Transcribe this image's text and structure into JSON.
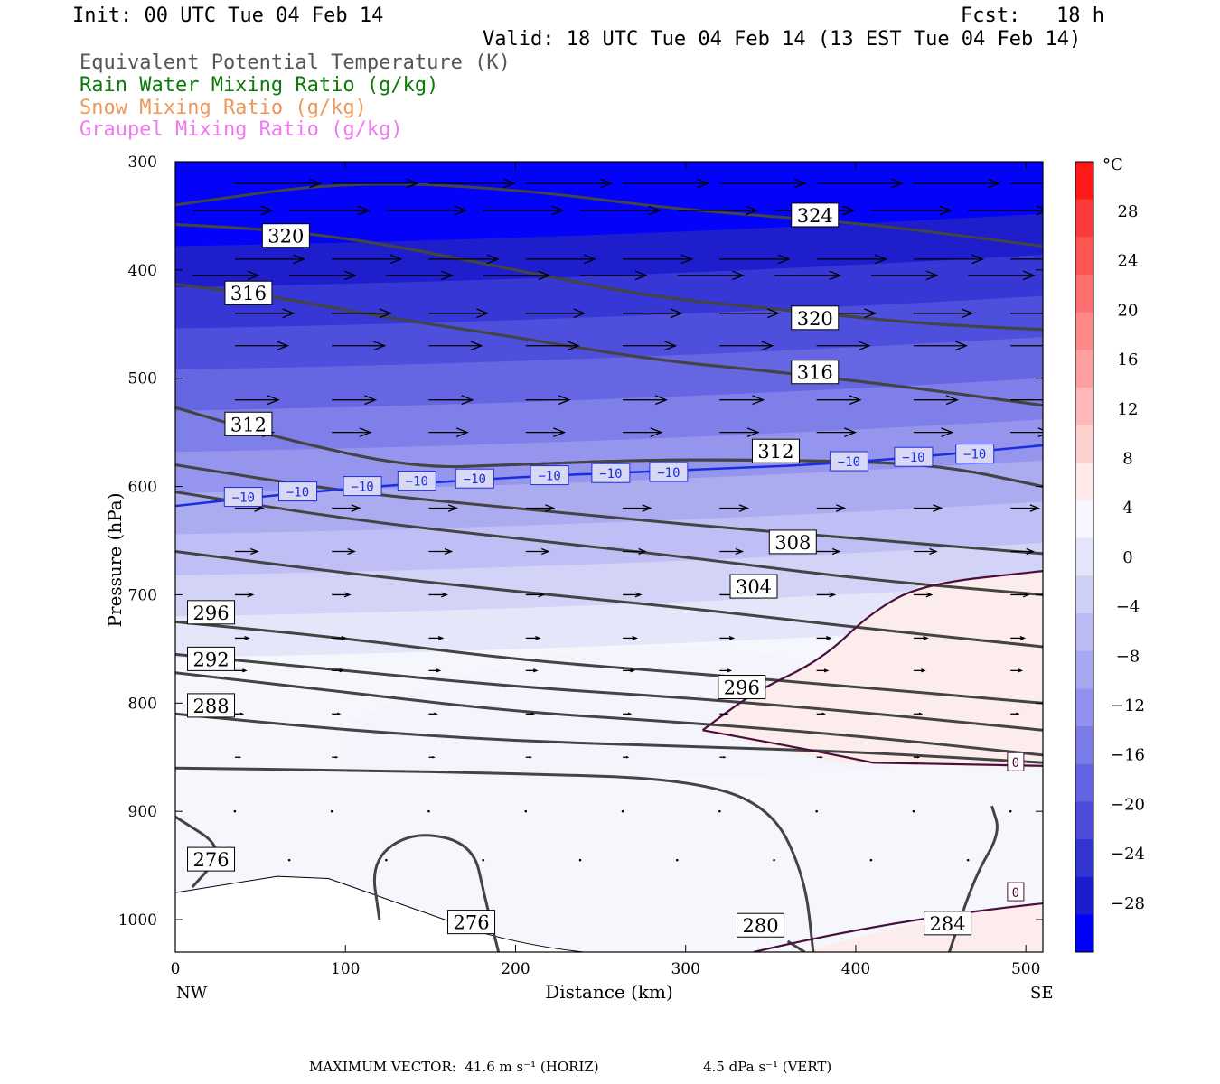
{
  "header": {
    "init": "Init: 00 UTC Tue 04 Feb 14",
    "fcst": "Fcst:   18 h",
    "valid": "Valid: 18 UTC Tue 04 Feb 14 (13 EST Tue 04 Feb 14)"
  },
  "legend": [
    {
      "label": "Equivalent Potential Temperature (K)",
      "color": "#555555"
    },
    {
      "label": "Rain Water Mixing Ratio (g/kg)",
      "color": "#0a7a0a"
    },
    {
      "label": "Snow Mixing Ratio (g/kg)",
      "color": "#f0985a"
    },
    {
      "label": "Graupel Mixing Ratio (g/kg)",
      "color": "#ef7aef"
    }
  ],
  "footer": {
    "max_vector": "MAXIMUM VECTOR:  41.6 m s⁻¹ (HORIZ)",
    "vert": "4.5 dPa s⁻¹ (VERT)"
  },
  "chart_data": {
    "type": "cross-section",
    "xlabel": "Distance (km)",
    "ylabel": "Pressure (hPa)",
    "x_ticks": [
      0,
      100,
      200,
      300,
      400,
      500
    ],
    "x_range": [
      0,
      510
    ],
    "y_ticks": [
      300,
      400,
      500,
      600,
      700,
      800,
      900,
      1000
    ],
    "y_range": [
      300,
      1030
    ],
    "endpoint_left": "NW",
    "endpoint_right": "SE",
    "colorbar_unit": "°C",
    "colorbar_labels": [
      "28",
      "24",
      "20",
      "16",
      "12",
      "8",
      "4",
      "0",
      "−4",
      "−8",
      "−12",
      "−16",
      "−20",
      "−24",
      "−28"
    ],
    "colorbar_colors": [
      "#ff1a1a",
      "#ff3a3a",
      "#ff5555",
      "#ff6f6f",
      "#ff8888",
      "#ffa0a0",
      "#ffb8b8",
      "#ffd0d0",
      "#ffeaea",
      "#f6f6fd",
      "#e4e4fa",
      "#d0d0f7",
      "#bcbcf4",
      "#a8a8f0",
      "#9292ec",
      "#7c7ce8",
      "#6464e2",
      "#4c4cdb",
      "#3434d4",
      "#1c1ccc",
      "#0000ff"
    ],
    "theta_e": [
      {
        "label": "324",
        "label_at": [
          376,
          350
        ],
        "points": [
          [
            0,
            340
          ],
          [
            100,
            318
          ],
          [
            200,
            325
          ],
          [
            300,
            345
          ],
          [
            400,
            356
          ],
          [
            510,
            378
          ]
        ]
      },
      {
        "label": "320",
        "label_at": [
          65,
          369
        ],
        "points": [
          [
            0,
            358
          ],
          [
            60,
            363
          ],
          [
            120,
            375
          ],
          [
            200,
            400
          ],
          [
            280,
            425
          ],
          [
            360,
            437
          ],
          [
            440,
            450
          ],
          [
            510,
            455
          ]
        ]
      },
      {
        "label": "320",
        "label_at": [
          376,
          445
        ],
        "points": [
          [
            0,
            358
          ],
          [
            60,
            363
          ],
          [
            120,
            375
          ],
          [
            200,
            400
          ],
          [
            280,
            425
          ],
          [
            360,
            437
          ],
          [
            440,
            450
          ],
          [
            510,
            455
          ]
        ]
      },
      {
        "label": "316",
        "label_at": [
          43,
          422
        ],
        "points": [
          [
            0,
            413
          ],
          [
            60,
            425
          ],
          [
            120,
            443
          ],
          [
            200,
            462
          ],
          [
            280,
            483
          ],
          [
            360,
            495
          ],
          [
            440,
            510
          ],
          [
            510,
            525
          ]
        ]
      },
      {
        "label": "316",
        "label_at": [
          376,
          495
        ],
        "points": [
          [
            0,
            413
          ],
          [
            60,
            425
          ],
          [
            120,
            443
          ],
          [
            200,
            462
          ],
          [
            280,
            483
          ],
          [
            360,
            495
          ],
          [
            440,
            510
          ],
          [
            510,
            525
          ]
        ]
      },
      {
        "label": "312",
        "label_at": [
          43,
          543
        ],
        "points": [
          [
            0,
            527
          ],
          [
            60,
            555
          ],
          [
            140,
            583
          ],
          [
            200,
            580
          ],
          [
            280,
            575
          ],
          [
            380,
            576
          ],
          [
            450,
            580
          ],
          [
            510,
            600
          ]
        ]
      },
      {
        "label": "312",
        "label_at": [
          353,
          568
        ],
        "points": [
          [
            0,
            527
          ],
          [
            60,
            555
          ],
          [
            140,
            583
          ],
          [
            200,
            580
          ],
          [
            280,
            575
          ],
          [
            380,
            576
          ],
          [
            450,
            580
          ],
          [
            510,
            600
          ]
        ]
      },
      {
        "label": "308",
        "label_at": [
          363,
          652
        ],
        "points": [
          [
            0,
            580
          ],
          [
            100,
            605
          ],
          [
            200,
            620
          ],
          [
            300,
            635
          ],
          [
            400,
            648
          ],
          [
            510,
            662
          ]
        ]
      },
      {
        "label": "304",
        "label_at": [
          340,
          693
        ],
        "points": [
          [
            0,
            605
          ],
          [
            100,
            630
          ],
          [
            200,
            648
          ],
          [
            300,
            665
          ],
          [
            400,
            685
          ],
          [
            510,
            700
          ]
        ]
      },
      {
        "label": "296",
        "label_at": [
          21,
          717
        ],
        "points": [
          [
            0,
            660
          ],
          [
            100,
            680
          ],
          [
            200,
            697
          ],
          [
            300,
            712
          ],
          [
            400,
            730
          ],
          [
            510,
            748
          ]
        ]
      },
      {
        "label": "292",
        "label_at": [
          21,
          760
        ],
        "points": [
          [
            0,
            725
          ],
          [
            100,
            740
          ],
          [
            200,
            760
          ],
          [
            300,
            772
          ],
          [
            400,
            785
          ],
          [
            510,
            800
          ]
        ]
      },
      {
        "label": "296",
        "label_at": [
          333,
          786
        ],
        "points": [
          [
            0,
            755
          ],
          [
            100,
            770
          ],
          [
            200,
            785
          ],
          [
            300,
            795
          ],
          [
            400,
            808
          ],
          [
            510,
            825
          ]
        ]
      },
      {
        "label": "288",
        "label_at": [
          21,
          803
        ],
        "points": [
          [
            0,
            772
          ],
          [
            100,
            790
          ],
          [
            200,
            808
          ],
          [
            300,
            818
          ],
          [
            400,
            830
          ],
          [
            510,
            848
          ]
        ]
      },
      {
        "label": "",
        "label_at": [
          0,
          0
        ],
        "points": [
          [
            0,
            810
          ],
          [
            100,
            825
          ],
          [
            200,
            835
          ],
          [
            300,
            840
          ],
          [
            400,
            845
          ],
          [
            510,
            855
          ]
        ]
      },
      {
        "label": "",
        "label_at": [
          0,
          0
        ],
        "points": [
          [
            0,
            860
          ],
          [
            100,
            862
          ],
          [
            200,
            865
          ],
          [
            300,
            870
          ],
          [
            350,
            895
          ],
          [
            370,
            960
          ],
          [
            375,
            1030
          ]
        ]
      },
      {
        "label": "276",
        "label_at": [
          21,
          945
        ],
        "points": [
          [
            10,
            970
          ],
          [
            30,
            935
          ],
          [
            0,
            905
          ]
        ]
      },
      {
        "label": "276",
        "label_at": [
          174,
          1003
        ],
        "points": [
          [
            120,
            1000
          ],
          [
            115,
            945
          ],
          [
            140,
            918
          ],
          [
            175,
            930
          ],
          [
            182,
            980
          ],
          [
            190,
            1030
          ]
        ]
      },
      {
        "label": "280",
        "label_at": [
          344,
          1006
        ],
        "points": [
          [
            370,
            1030
          ],
          [
            360,
            1020
          ]
        ]
      },
      {
        "label": "284",
        "label_at": [
          454,
          1004
        ],
        "points": [
          [
            455,
            1030
          ],
          [
            470,
            960
          ],
          [
            485,
            920
          ],
          [
            480,
            895
          ]
        ]
      }
    ],
    "isotherm_minus10": {
      "label": "−10",
      "label_at": [
        [
          40,
          610
        ],
        [
          72,
          605
        ],
        [
          110,
          600
        ],
        [
          142,
          595
        ],
        [
          176,
          593
        ],
        [
          220,
          590
        ],
        [
          256,
          588
        ],
        [
          290,
          587
        ],
        [
          396,
          577
        ],
        [
          434,
          573
        ],
        [
          470,
          570
        ]
      ],
      "points": [
        [
          0,
          618
        ],
        [
          40,
          611
        ],
        [
          100,
          602
        ],
        [
          200,
          591
        ],
        [
          300,
          585
        ],
        [
          400,
          578
        ],
        [
          510,
          562
        ]
      ]
    },
    "isotherm_0": {
      "label": "0",
      "label_at": [
        [
          494,
          855
        ],
        [
          494,
          975
        ]
      ],
      "points": [
        [
          310,
          825
        ],
        [
          340,
          790
        ],
        [
          380,
          760
        ],
        [
          410,
          715
        ],
        [
          440,
          690
        ],
        [
          510,
          678
        ]
      ]
    }
  }
}
